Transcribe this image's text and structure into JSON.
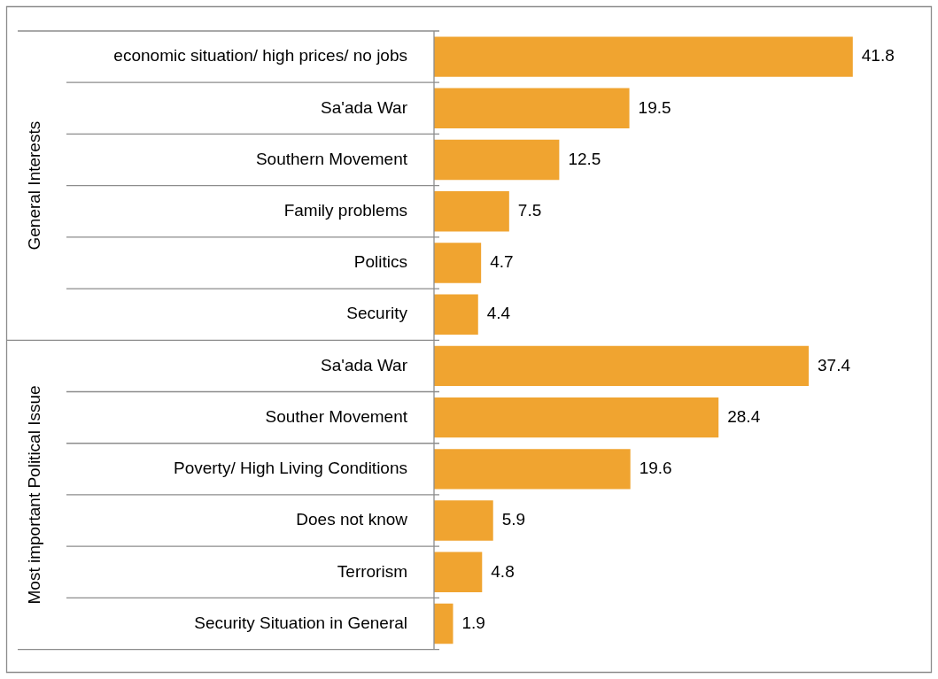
{
  "chart_data": {
    "type": "bar",
    "orientation": "horizontal",
    "categories": [
      "economic situation/ high prices/ no jobs",
      "Sa'ada War",
      "Southern Movement",
      "Family problems",
      "Politics",
      "Security",
      "Sa'ada War",
      "Souther Movement",
      "Poverty/ High Living Conditions",
      "Does not know",
      "Terrorism",
      "Security Situation in General"
    ],
    "values": [
      41.8,
      19.5,
      12.5,
      7.5,
      4.7,
      4.4,
      37.4,
      28.4,
      19.6,
      5.9,
      4.8,
      1.9
    ],
    "color": "#f0a430",
    "data_labels": true,
    "annotations": [
      "General Interests",
      "Most important Political Issue"
    ],
    "legend": false
  }
}
